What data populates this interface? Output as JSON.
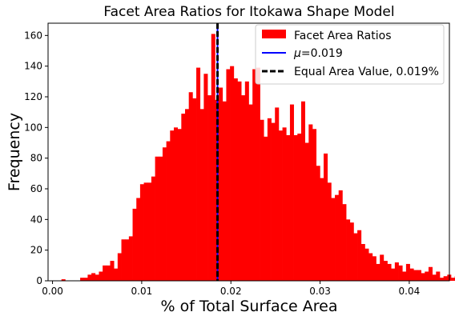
{
  "chart_data": {
    "type": "bar",
    "title": "Facet Area Ratios for Itokawa Shape Model",
    "xlabel": "% of Total Surface Area",
    "ylabel": "Frequency",
    "xlim": [
      -0.0005,
      0.0445
    ],
    "ylim": [
      0,
      168
    ],
    "xticks": [
      0.0,
      0.01,
      0.02,
      0.03,
      0.04
    ],
    "xtick_labels": [
      "0.00",
      "0.01",
      "0.02",
      "0.03",
      "0.04"
    ],
    "yticks": [
      0,
      20,
      40,
      60,
      80,
      100,
      120,
      140,
      160
    ],
    "ytick_labels": [
      "0",
      "20",
      "40",
      "60",
      "80",
      "100",
      "120",
      "140",
      "160"
    ],
    "grid": false,
    "legend_position": "top-right",
    "bins": {
      "start": 0.001,
      "width": 0.00042,
      "counts": [
        1,
        0,
        0,
        0,
        0,
        2,
        2,
        4,
        5,
        4,
        6,
        10,
        10,
        13,
        8,
        18,
        27,
        27,
        29,
        47,
        54,
        63,
        64,
        64,
        68,
        81,
        81,
        87,
        91,
        98,
        100,
        99,
        109,
        112,
        123,
        119,
        139,
        112,
        135,
        121,
        161,
        118,
        126,
        117,
        138,
        140,
        132,
        130,
        121,
        130,
        115,
        138,
        139,
        105,
        94,
        106,
        103,
        113,
        98,
        100,
        95,
        115,
        95,
        96,
        117,
        90,
        102,
        99,
        75,
        67,
        83,
        64,
        54,
        56,
        59,
        50,
        40,
        38,
        31,
        33,
        24,
        21,
        18,
        16,
        11,
        17,
        13,
        11,
        8,
        12,
        10,
        6,
        11,
        8,
        7,
        7,
        5,
        6,
        9,
        4,
        6,
        2,
        3,
        4,
        2,
        3,
        2,
        2,
        3,
        2,
        3,
        7,
        5,
        5,
        2,
        3,
        4,
        3,
        3,
        1,
        2,
        0,
        1,
        1,
        0,
        1,
        1
      ]
    },
    "series": [
      {
        "name": "Facet Area Ratios",
        "kind": "histogram",
        "color": "#ff0000"
      },
      {
        "name": "$\\mu$=0.019",
        "kind": "vline",
        "x": 0.0185,
        "color": "#0000ff",
        "style": "solid"
      },
      {
        "name": "Equal Area Value, 0.019%",
        "kind": "vline",
        "x": 0.0185,
        "color": "#000000",
        "style": "dashed"
      }
    ]
  }
}
